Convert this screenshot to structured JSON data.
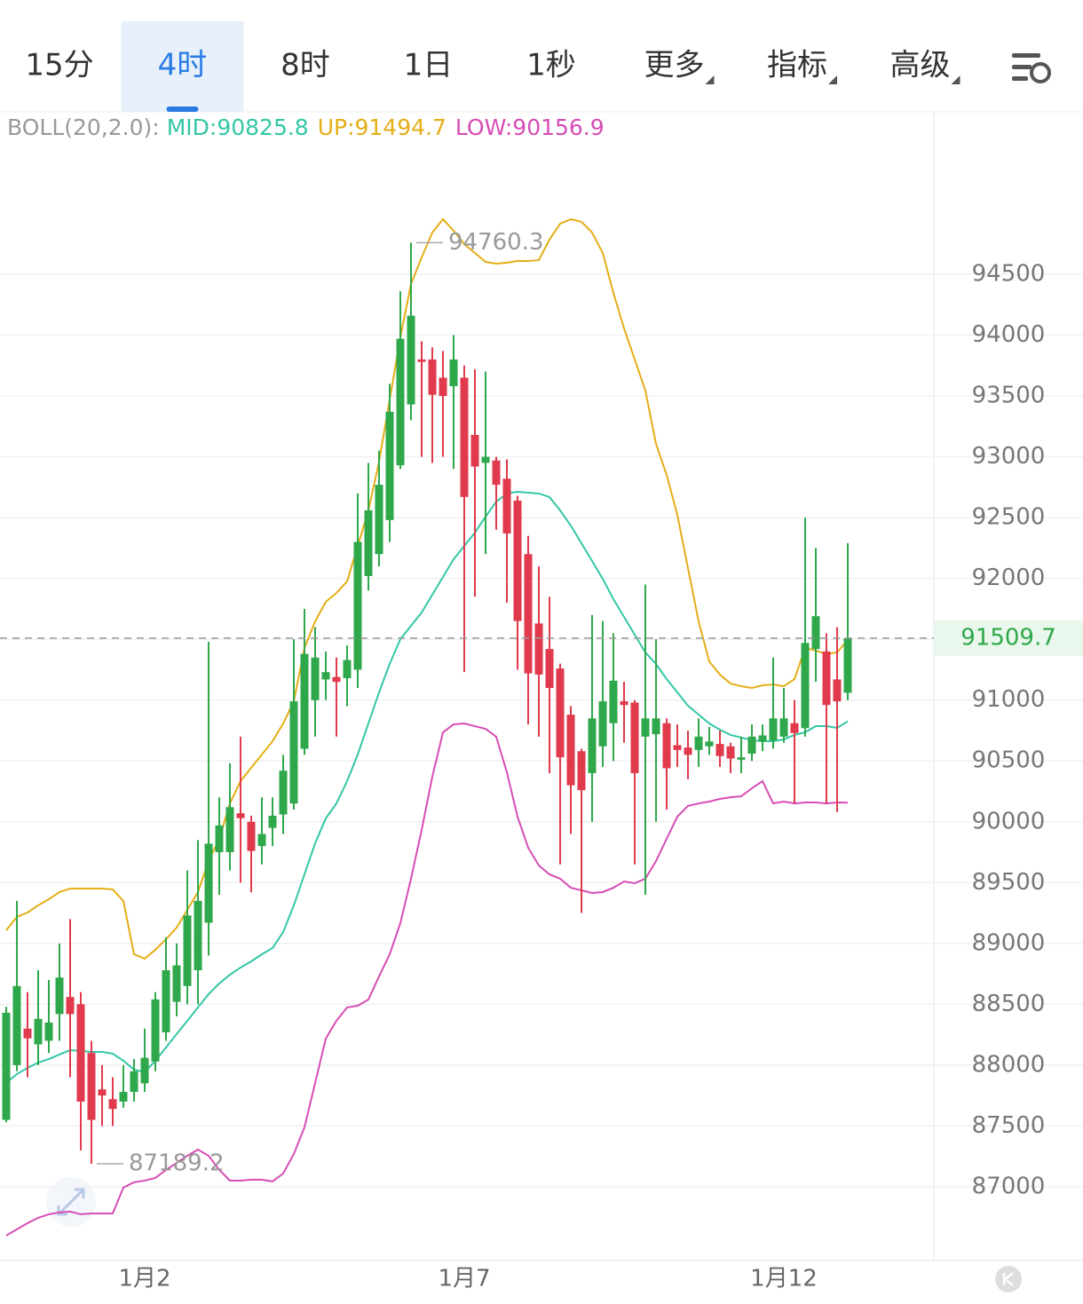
{
  "toolbar": {
    "tabs": [
      {
        "label": "15分",
        "selected": false,
        "dropdown": false
      },
      {
        "label": "4时",
        "selected": true,
        "dropdown": false
      },
      {
        "label": "8时",
        "selected": false,
        "dropdown": false
      },
      {
        "label": "1日",
        "selected": false,
        "dropdown": false
      },
      {
        "label": "1秒",
        "selected": false,
        "dropdown": false
      },
      {
        "label": "更多",
        "selected": false,
        "dropdown": true
      },
      {
        "label": "指标",
        "selected": false,
        "dropdown": true
      },
      {
        "label": "高级",
        "selected": false,
        "dropdown": true
      }
    ]
  },
  "chart_data": {
    "type": "candlestick",
    "indicator_label": "BOLL(20,2.0):",
    "categories": [
      null,
      null,
      null,
      null,
      null,
      null,
      null,
      null,
      null,
      null,
      null,
      null,
      null,
      "1月2",
      null,
      null,
      null,
      null,
      null,
      null,
      null,
      null,
      null,
      null,
      null,
      null,
      null,
      null,
      null,
      null,
      null,
      null,
      null,
      null,
      null,
      null,
      null,
      null,
      null,
      null,
      null,
      null,
      null,
      "1月7",
      null,
      null,
      null,
      null,
      null,
      null,
      null,
      null,
      null,
      null,
      null,
      null,
      null,
      null,
      null,
      null,
      null,
      null,
      null,
      null,
      null,
      null,
      null,
      null,
      null,
      null,
      null,
      null,
      null,
      "1月12",
      null,
      null,
      null,
      null,
      null,
      null
    ],
    "candles": {
      "open": [
        87550,
        88000,
        88300,
        88170,
        88200,
        88420,
        88560,
        88500,
        88100,
        87800,
        87720,
        87700,
        87780,
        87850,
        88030,
        88270,
        88520,
        88650,
        88780,
        89170,
        89750,
        89750,
        90070,
        90000,
        89800,
        89950,
        90060,
        90150,
        90600,
        91000,
        91170,
        91190,
        91180,
        91250,
        92020,
        92200,
        92480,
        92930,
        93430,
        93800,
        93800,
        93650,
        93580,
        93650,
        93180,
        92950,
        92970,
        92820,
        92640,
        92200,
        91630,
        91420,
        91260,
        90880,
        90580,
        90400,
        90620,
        90810,
        90990,
        90980,
        90700,
        90720,
        90810,
        90630,
        90610,
        90590,
        90620,
        90640,
        90620,
        90510,
        90560,
        90660,
        90670,
        90700,
        90810,
        90770,
        91420,
        91400,
        91170,
        91060
      ],
      "high": [
        88480,
        89350,
        88600,
        88780,
        88700,
        89000,
        89200,
        88600,
        88200,
        88000,
        87900,
        88000,
        88050,
        88300,
        88600,
        89050,
        89000,
        89600,
        89850,
        91480,
        90200,
        90480,
        90700,
        90050,
        90200,
        90200,
        90550,
        91500,
        91750,
        91600,
        91400,
        91350,
        91450,
        92700,
        92950,
        93050,
        93600,
        94360,
        94760.3,
        93950,
        93900,
        93870,
        94000,
        93750,
        93720,
        93700,
        93000,
        92980,
        92680,
        92350,
        92100,
        91850,
        91300,
        90950,
        90600,
        91700,
        91650,
        91550,
        91150,
        91000,
        91950,
        91500,
        90850,
        90800,
        90750,
        90850,
        90780,
        90750,
        90650,
        90700,
        90800,
        90800,
        91350,
        91100,
        91000,
        92500,
        92250,
        91550,
        91600,
        92290
      ],
      "low": [
        87530,
        87950,
        87900,
        88000,
        88100,
        88200,
        87900,
        87300,
        87189.2,
        87500,
        87500,
        87650,
        87700,
        87780,
        87950,
        88200,
        88400,
        88500,
        88500,
        88900,
        89400,
        89600,
        89500,
        89420,
        89650,
        89800,
        89900,
        90100,
        90550,
        90700,
        91000,
        90700,
        90950,
        91100,
        91900,
        92100,
        92300,
        92900,
        93300,
        93000,
        92950,
        93000,
        92900,
        91230,
        91850,
        92200,
        92400,
        91800,
        91250,
        90800,
        90700,
        90400,
        89650,
        89900,
        89250,
        90000,
        90450,
        90500,
        90650,
        89650,
        89400,
        90000,
        90100,
        90450,
        90350,
        90450,
        90550,
        90450,
        90400,
        90400,
        90500,
        90580,
        90600,
        90650,
        90150,
        90700,
        91150,
        90150,
        90080,
        91000
      ],
      "close": [
        88430,
        88650,
        88220,
        88380,
        88350,
        88720,
        88420,
        87700,
        87550,
        87750,
        87640,
        87780,
        87950,
        88060,
        88540,
        88780,
        88820,
        89230,
        89350,
        89820,
        89970,
        90120,
        90030,
        89760,
        89900,
        90050,
        90420,
        90990,
        91380,
        91350,
        91230,
        91150,
        91330,
        92300,
        92560,
        92770,
        93370,
        93970,
        94160,
        93780,
        93510,
        93500,
        93800,
        92670,
        92920,
        93000,
        92770,
        92370,
        91650,
        91220,
        91210,
        91100,
        90530,
        90300,
        90260,
        90850,
        90990,
        91160,
        90960,
        90400,
        90850,
        90850,
        90440,
        90590,
        90550,
        90700,
        90660,
        90540,
        90520,
        90530,
        90700,
        90710,
        90850,
        90850,
        90730,
        91470,
        91690,
        90960,
        90990,
        91509.7
      ]
    },
    "up_color": "#2ea84a",
    "down_color": "#e03a4c",
    "series": [
      {
        "name": "MID:90825.8",
        "color": "#33c7a6",
        "values": [
          87853,
          87926,
          87977,
          88021,
          88050,
          88087,
          88123,
          88116,
          88109,
          88109,
          88094,
          88036,
          87963,
          87941,
          88036,
          88145,
          88255,
          88364,
          88474,
          88583,
          88671,
          88743,
          88802,
          88853,
          88911,
          88962,
          89094,
          89313,
          89568,
          89823,
          90028,
          90151,
          90334,
          90553,
          90808,
          91064,
          91297,
          91501,
          91611,
          91720,
          91866,
          92012,
          92158,
          92267,
          92377,
          92508,
          92632,
          92698,
          92712,
          92705,
          92698,
          92669,
          92559,
          92435,
          92289,
          92143,
          91997,
          91830,
          91684,
          91538,
          91392,
          91297,
          91173,
          91064,
          90954,
          90881,
          90808,
          90757,
          90714,
          90692,
          90670,
          90662,
          90662,
          90677,
          90714,
          90735,
          90786,
          90786,
          90772,
          90825.8
        ]
      },
      {
        "name": "UP:91494.7",
        "color": "#e4ae17",
        "values": [
          89108,
          89218,
          89254,
          89313,
          89364,
          89422,
          89451,
          89451,
          89451,
          89451,
          89444,
          89349,
          88911,
          88875,
          88948,
          89035,
          89130,
          89276,
          89422,
          89677,
          89860,
          90151,
          90334,
          90444,
          90553,
          90662,
          90808,
          90991,
          91429,
          91647,
          91808,
          91881,
          91976,
          92267,
          92559,
          92960,
          93471,
          93982,
          94420,
          94639,
          94843,
          94953,
          94858,
          94748,
          94675,
          94602,
          94588,
          94595,
          94609,
          94609,
          94617,
          94785,
          94916,
          94953,
          94931,
          94843,
          94675,
          94347,
          94055,
          93800,
          93544,
          93106,
          92851,
          92523,
          92085,
          91647,
          91318,
          91209,
          91136,
          91114,
          91100,
          91122,
          91129,
          91114,
          91173,
          91429,
          91407,
          91378,
          91392,
          91494.7
        ]
      },
      {
        "name": "LOW:90156.9",
        "color": "#d64db4",
        "values": [
          86599,
          86650,
          86701,
          86745,
          86774,
          86789,
          86796,
          86774,
          86781,
          86781,
          86781,
          86993,
          87037,
          87051,
          87073,
          87139,
          87197,
          87255,
          87306,
          87255,
          87139,
          87051,
          87051,
          87058,
          87058,
          87044,
          87109,
          87270,
          87489,
          87853,
          88218,
          88364,
          88474,
          88488,
          88539,
          88729,
          88911,
          89167,
          89532,
          89933,
          90370,
          90735,
          90801,
          90808,
          90786,
          90764,
          90699,
          90407,
          90042,
          89787,
          89641,
          89568,
          89532,
          89458,
          89437,
          89415,
          89422,
          89458,
          89509,
          89495,
          89532,
          89677,
          89860,
          90042,
          90130,
          90151,
          90166,
          90188,
          90202,
          90210,
          90275,
          90334,
          90151,
          90166,
          90151,
          90159,
          90159,
          90151,
          90159,
          90156.9
        ]
      }
    ],
    "max_marker": 94760.3,
    "min_marker": 87189.2,
    "last_price": 91509.7,
    "ylim": [
      86394,
      95806
    ],
    "yticks": [
      87000,
      87500,
      88000,
      88500,
      89000,
      89500,
      90000,
      90500,
      91000,
      91500,
      92000,
      92500,
      93000,
      93500,
      94000,
      94500
    ],
    "grid": true
  }
}
